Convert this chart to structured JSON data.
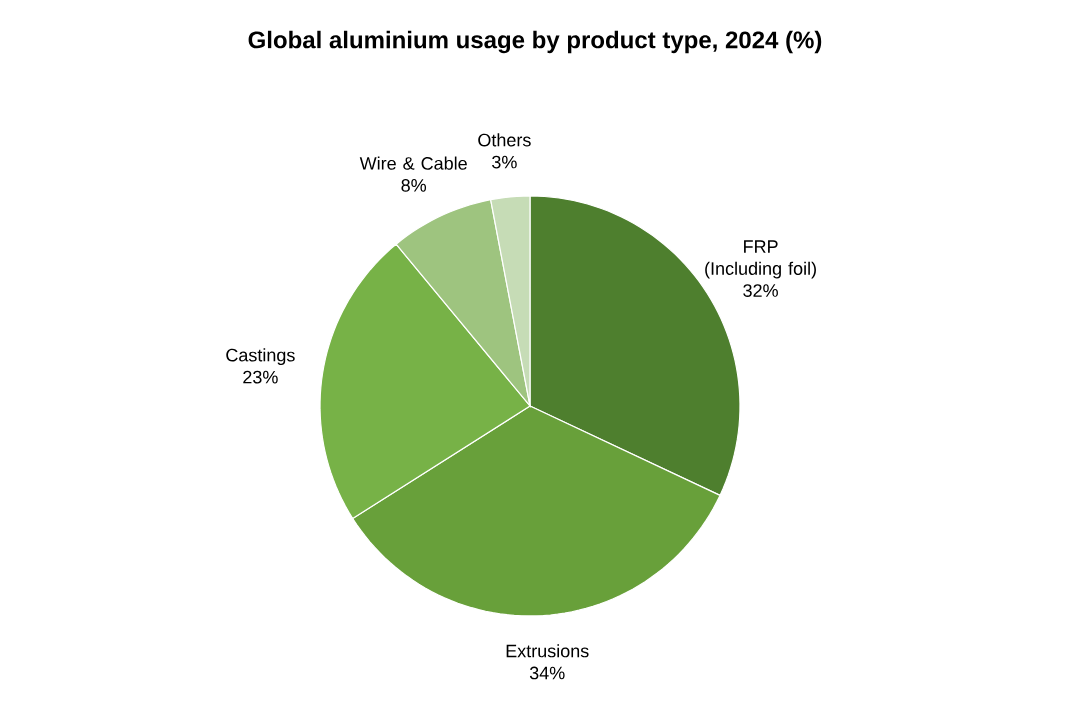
{
  "chart_data": {
    "type": "pie",
    "title": "Global aluminium usage by product type, 2024 (%)",
    "categories": [
      "FRP (Including foil)",
      "Extrusions",
      "Castings",
      "Wire & Cable",
      "Others"
    ],
    "values": [
      32,
      34,
      23,
      8,
      3
    ],
    "value_labels": [
      "32%",
      "34%",
      "23%",
      "8%",
      "3%"
    ],
    "colors": [
      "#4e7f2e",
      "#68a03a",
      "#77b247",
      "#9ec47f",
      "#c6dcb6"
    ]
  }
}
